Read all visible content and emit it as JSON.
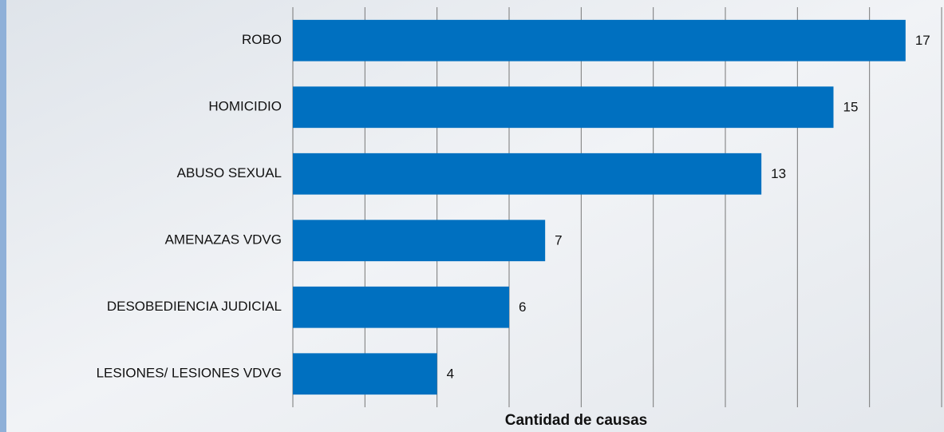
{
  "chart_data": {
    "type": "barh",
    "x_label": "Cantidad de causas",
    "categories": [
      "ROBO",
      "HOMICIDIO",
      "ABUSO SEXUAL",
      "AMENAZAS VDVG",
      "DESOBEDIENCIA JUDICIAL",
      "LESIONES/ LESIONES VDVG"
    ],
    "values": [
      17,
      15,
      13,
      7,
      6,
      4
    ],
    "color": "#0070c0",
    "xlim": [
      0,
      18
    ],
    "xticks": [
      0,
      2,
      4,
      6,
      8,
      10,
      12,
      14,
      16,
      18
    ],
    "grid": true
  }
}
